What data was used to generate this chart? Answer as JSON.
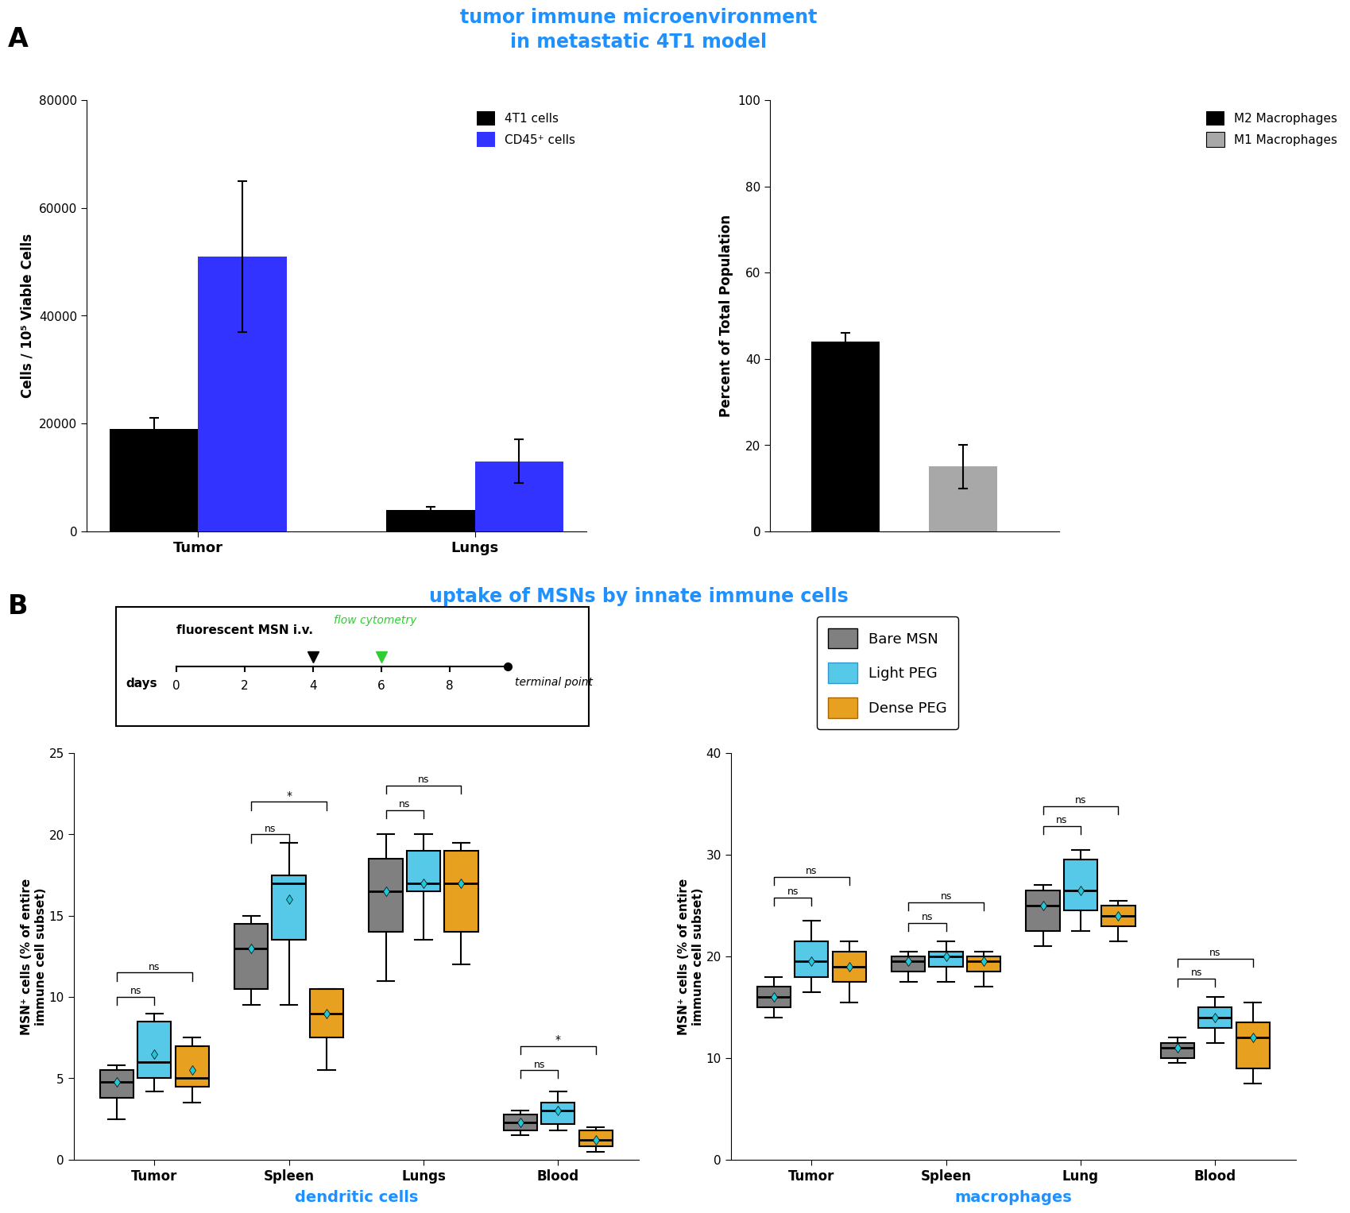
{
  "title_A": "tumor immune microenvironment\nin metastatic 4T1 model",
  "title_B": "uptake of MSNs by innate immune cells",
  "title_color": "#1E90FF",
  "bar_chart1": {
    "categories": [
      "Tumor",
      "Lungs"
    ],
    "values_4T1": [
      19000,
      4000
    ],
    "errors_4T1": [
      2000,
      500
    ],
    "values_CD45": [
      51000,
      13000
    ],
    "errors_CD45": [
      14000,
      4000
    ],
    "ylabel": "Cells / 10⁵ Viable Cells",
    "ylim": [
      0,
      80000
    ],
    "yticks": [
      0,
      20000,
      40000,
      60000,
      80000
    ],
    "color_4T1": "#000000",
    "color_CD45": "#3333FF",
    "legend_labels": [
      "4T1 cells",
      "CD45⁺ cells"
    ]
  },
  "bar_chart2": {
    "values": [
      44,
      15
    ],
    "errors": [
      2,
      5
    ],
    "ylabel": "Percent of Total Population",
    "ylim": [
      0,
      100
    ],
    "yticks": [
      0,
      20,
      40,
      60,
      80,
      100
    ],
    "colors": [
      "#000000",
      "#A8A8A8"
    ],
    "legend_labels": [
      "M2 Macrophages",
      "M1 Macrophages"
    ]
  },
  "box_colors": {
    "bare": "#808080",
    "light": "#56C8E8",
    "dense": "#E8A020"
  },
  "dc_data": {
    "title": "dendritic cells",
    "ylabel": "MSN⁺ cells (% of entire\nimmune cell subset)",
    "ylim": [
      0,
      25
    ],
    "yticks": [
      0,
      5,
      10,
      15,
      20,
      25
    ],
    "categories": [
      "Tumor",
      "Spleen",
      "Lungs",
      "Blood"
    ],
    "bare": {
      "Tumor": {
        "q1": 3.8,
        "median": 4.8,
        "q3": 5.5,
        "whislo": 2.5,
        "whishi": 5.8,
        "mean": 4.8
      },
      "Spleen": {
        "q1": 10.5,
        "median": 13.0,
        "q3": 14.5,
        "whislo": 9.5,
        "whishi": 15.0,
        "mean": 13.0
      },
      "Lungs": {
        "q1": 14.0,
        "median": 16.5,
        "q3": 18.5,
        "whislo": 11.0,
        "whishi": 20.0,
        "mean": 16.5
      },
      "Blood": {
        "q1": 1.8,
        "median": 2.3,
        "q3": 2.8,
        "whislo": 1.5,
        "whishi": 3.0,
        "mean": 2.3
      }
    },
    "light": {
      "Tumor": {
        "q1": 5.0,
        "median": 6.0,
        "q3": 8.5,
        "whislo": 4.2,
        "whishi": 9.0,
        "mean": 6.5
      },
      "Spleen": {
        "q1": 13.5,
        "median": 17.0,
        "q3": 17.5,
        "whislo": 9.5,
        "whishi": 19.5,
        "mean": 16.0
      },
      "Lungs": {
        "q1": 16.5,
        "median": 17.0,
        "q3": 19.0,
        "whislo": 13.5,
        "whishi": 20.0,
        "mean": 17.0
      },
      "Blood": {
        "q1": 2.2,
        "median": 3.0,
        "q3": 3.5,
        "whislo": 1.8,
        "whishi": 4.2,
        "mean": 3.0
      }
    },
    "dense": {
      "Tumor": {
        "q1": 4.5,
        "median": 5.0,
        "q3": 7.0,
        "whislo": 3.5,
        "whishi": 7.5,
        "mean": 5.5
      },
      "Spleen": {
        "q1": 7.5,
        "median": 9.0,
        "q3": 10.5,
        "whislo": 5.5,
        "whishi": 10.5,
        "mean": 9.0
      },
      "Lungs": {
        "q1": 14.0,
        "median": 17.0,
        "q3": 19.0,
        "whislo": 12.0,
        "whishi": 19.5,
        "mean": 17.0
      },
      "Blood": {
        "q1": 0.8,
        "median": 1.2,
        "q3": 1.8,
        "whislo": 0.5,
        "whishi": 2.0,
        "mean": 1.2
      }
    }
  },
  "mac_data": {
    "title": "macrophages",
    "ylabel": "MSN⁺ cells (% of entire\nimmune cell subset)",
    "ylim": [
      0,
      40
    ],
    "yticks": [
      0,
      10,
      20,
      30,
      40
    ],
    "categories": [
      "Tumor",
      "Spleen",
      "Lung",
      "Blood"
    ],
    "bare": {
      "Tumor": {
        "q1": 15.0,
        "median": 16.0,
        "q3": 17.0,
        "whislo": 14.0,
        "whishi": 18.0,
        "mean": 16.0
      },
      "Spleen": {
        "q1": 18.5,
        "median": 19.5,
        "q3": 20.0,
        "whislo": 17.5,
        "whishi": 20.5,
        "mean": 19.5
      },
      "Lung": {
        "q1": 22.5,
        "median": 25.0,
        "q3": 26.5,
        "whislo": 21.0,
        "whishi": 27.0,
        "mean": 25.0
      },
      "Blood": {
        "q1": 10.0,
        "median": 11.0,
        "q3": 11.5,
        "whislo": 9.5,
        "whishi": 12.0,
        "mean": 11.0
      }
    },
    "light": {
      "Tumor": {
        "q1": 18.0,
        "median": 19.5,
        "q3": 21.5,
        "whislo": 16.5,
        "whishi": 23.5,
        "mean": 19.5
      },
      "Spleen": {
        "q1": 19.0,
        "median": 20.0,
        "q3": 20.5,
        "whislo": 17.5,
        "whishi": 21.5,
        "mean": 20.0
      },
      "Lung": {
        "q1": 24.5,
        "median": 26.5,
        "q3": 29.5,
        "whislo": 22.5,
        "whishi": 30.5,
        "mean": 26.5
      },
      "Blood": {
        "q1": 13.0,
        "median": 14.0,
        "q3": 15.0,
        "whislo": 11.5,
        "whishi": 16.0,
        "mean": 14.0
      }
    },
    "dense": {
      "Tumor": {
        "q1": 17.5,
        "median": 19.0,
        "q3": 20.5,
        "whislo": 15.5,
        "whishi": 21.5,
        "mean": 19.0
      },
      "Spleen": {
        "q1": 18.5,
        "median": 19.5,
        "q3": 20.0,
        "whislo": 17.0,
        "whishi": 20.5,
        "mean": 19.5
      },
      "Lung": {
        "q1": 23.0,
        "median": 24.0,
        "q3": 25.0,
        "whislo": 21.5,
        "whishi": 25.5,
        "mean": 24.0
      },
      "Blood": {
        "q1": 9.0,
        "median": 12.0,
        "q3": 13.5,
        "whislo": 7.5,
        "whishi": 15.5,
        "mean": 12.0
      }
    }
  }
}
